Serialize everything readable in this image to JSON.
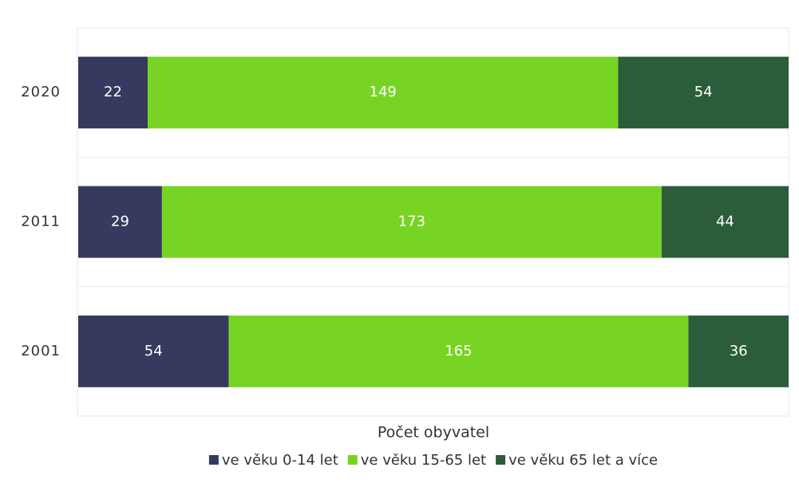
{
  "chart_data": {
    "type": "stacked_percent_bar",
    "orientation": "horizontal",
    "x_axis_label": "Počet obyvatel",
    "categories": [
      "2020",
      "2011",
      "2001"
    ],
    "series": [
      {
        "name": "ve věku 0-14 let",
        "color": "#363a5e",
        "values": [
          22,
          29,
          54
        ]
      },
      {
        "name": "ve věku 15-65 let",
        "color": "#78d424",
        "values": [
          149,
          173,
          165
        ]
      },
      {
        "name": "ve věku 65 let a více",
        "color": "#2b5d3b",
        "values": [
          54,
          44,
          36
        ]
      }
    ],
    "data_labels": true,
    "legend": "bottom"
  }
}
